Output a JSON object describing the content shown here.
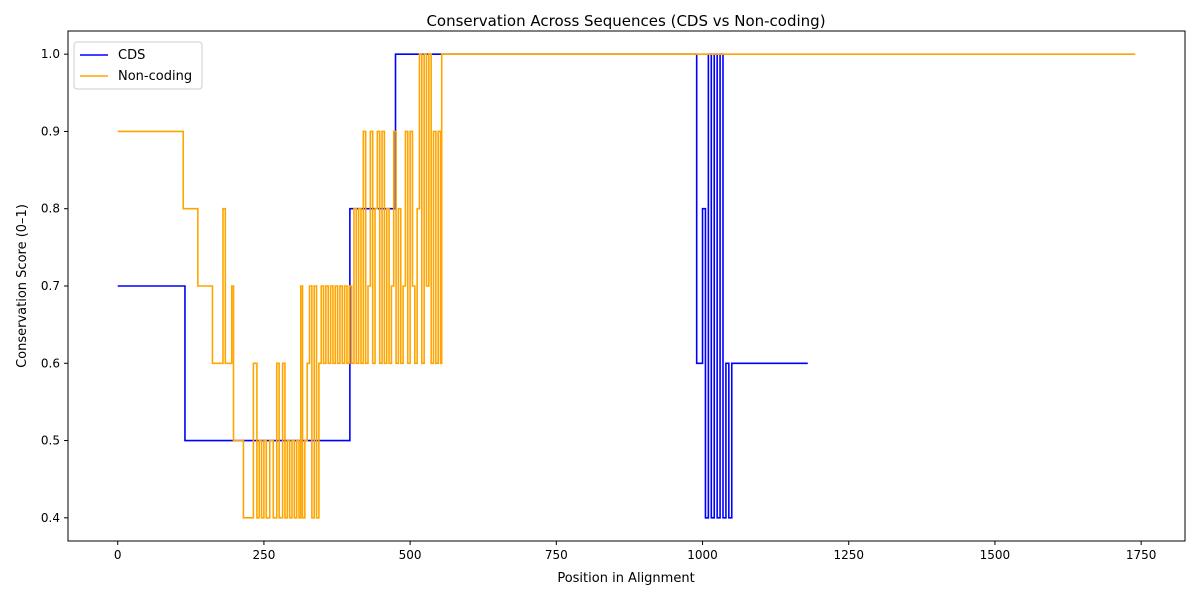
{
  "chart_data": {
    "type": "line",
    "title": "Conservation Across Sequences (CDS vs Non-coding)",
    "xlabel": "Position in Alignment",
    "ylabel": "Conservation Score (0–1)",
    "xlim": [
      -85,
      1825
    ],
    "ylim": [
      0.37,
      1.03
    ],
    "xticks": [
      0,
      250,
      500,
      750,
      1000,
      1250,
      1500,
      1750
    ],
    "yticks": [
      0.4,
      0.5,
      0.6,
      0.7,
      0.8,
      0.9,
      1.0
    ],
    "yticklabels": [
      "0.4",
      "0.5",
      "0.6",
      "0.7",
      "0.8",
      "0.9",
      "1.0"
    ],
    "grid": false,
    "legend_position": "top-left",
    "series": [
      {
        "name": "CDS",
        "color": "#0000ff",
        "points": [
          [
            0,
            0.7
          ],
          [
            115,
            0.7
          ],
          [
            115,
            0.5
          ],
          [
            397,
            0.5
          ],
          [
            397,
            0.8
          ],
          [
            475,
            0.8
          ],
          [
            475,
            1.0
          ],
          [
            990,
            1.0
          ],
          [
            990,
            0.6
          ],
          [
            1000,
            0.6
          ],
          [
            1000,
            0.8
          ],
          [
            1005,
            0.8
          ],
          [
            1005,
            0.4
          ],
          [
            1010,
            0.4
          ],
          [
            1010,
            1.0
          ],
          [
            1015,
            1.0
          ],
          [
            1015,
            0.4
          ],
          [
            1020,
            0.4
          ],
          [
            1020,
            1.0
          ],
          [
            1025,
            1.0
          ],
          [
            1025,
            0.4
          ],
          [
            1030,
            0.4
          ],
          [
            1030,
            1.0
          ],
          [
            1035,
            1.0
          ],
          [
            1035,
            0.4
          ],
          [
            1040,
            0.4
          ],
          [
            1040,
            0.6
          ],
          [
            1045,
            0.6
          ],
          [
            1045,
            0.4
          ],
          [
            1050,
            0.4
          ],
          [
            1050,
            0.6
          ],
          [
            1180,
            0.6
          ]
        ]
      },
      {
        "name": "Non-coding",
        "color": "#ffa500",
        "points": [
          [
            0,
            0.9
          ],
          [
            112,
            0.9
          ],
          [
            112,
            0.8
          ],
          [
            137,
            0.8
          ],
          [
            137,
            0.7
          ],
          [
            162,
            0.7
          ],
          [
            162,
            0.6
          ],
          [
            180,
            0.6
          ],
          [
            180,
            0.8
          ],
          [
            184,
            0.8
          ],
          [
            184,
            0.6
          ],
          [
            195,
            0.6
          ],
          [
            195,
            0.7
          ],
          [
            198,
            0.7
          ],
          [
            198,
            0.5
          ],
          [
            215,
            0.5
          ],
          [
            215,
            0.4
          ],
          [
            232,
            0.4
          ],
          [
            232,
            0.6
          ],
          [
            238,
            0.6
          ],
          [
            238,
            0.4
          ],
          [
            242,
            0.4
          ],
          [
            242,
            0.5
          ],
          [
            246,
            0.5
          ],
          [
            246,
            0.4
          ],
          [
            250,
            0.4
          ],
          [
            250,
            0.5
          ],
          [
            254,
            0.5
          ],
          [
            254,
            0.4
          ],
          [
            260,
            0.4
          ],
          [
            260,
            0.5
          ],
          [
            266,
            0.5
          ],
          [
            266,
            0.4
          ],
          [
            272,
            0.4
          ],
          [
            272,
            0.6
          ],
          [
            276,
            0.6
          ],
          [
            276,
            0.4
          ],
          [
            282,
            0.4
          ],
          [
            282,
            0.6
          ],
          [
            286,
            0.6
          ],
          [
            286,
            0.4
          ],
          [
            290,
            0.4
          ],
          [
            290,
            0.5
          ],
          [
            294,
            0.5
          ],
          [
            294,
            0.4
          ],
          [
            298,
            0.4
          ],
          [
            298,
            0.5
          ],
          [
            302,
            0.5
          ],
          [
            302,
            0.4
          ],
          [
            306,
            0.4
          ],
          [
            306,
            0.5
          ],
          [
            310,
            0.5
          ],
          [
            310,
            0.4
          ],
          [
            313,
            0.4
          ],
          [
            313,
            0.7
          ],
          [
            316,
            0.7
          ],
          [
            316,
            0.4
          ],
          [
            320,
            0.4
          ],
          [
            320,
            0.5
          ],
          [
            324,
            0.5
          ],
          [
            324,
            0.6
          ],
          [
            328,
            0.6
          ],
          [
            328,
            0.7
          ],
          [
            332,
            0.7
          ],
          [
            332,
            0.4
          ],
          [
            336,
            0.4
          ],
          [
            336,
            0.7
          ],
          [
            340,
            0.7
          ],
          [
            340,
            0.4
          ],
          [
            344,
            0.4
          ],
          [
            344,
            0.6
          ],
          [
            348,
            0.6
          ],
          [
            348,
            0.7
          ],
          [
            352,
            0.7
          ],
          [
            352,
            0.6
          ],
          [
            356,
            0.6
          ],
          [
            356,
            0.7
          ],
          [
            360,
            0.7
          ],
          [
            360,
            0.6
          ],
          [
            364,
            0.6
          ],
          [
            364,
            0.7
          ],
          [
            368,
            0.7
          ],
          [
            368,
            0.6
          ],
          [
            372,
            0.6
          ],
          [
            372,
            0.7
          ],
          [
            376,
            0.7
          ],
          [
            376,
            0.6
          ],
          [
            380,
            0.6
          ],
          [
            380,
            0.7
          ],
          [
            384,
            0.7
          ],
          [
            384,
            0.6
          ],
          [
            388,
            0.6
          ],
          [
            388,
            0.7
          ],
          [
            392,
            0.7
          ],
          [
            392,
            0.6
          ],
          [
            396,
            0.6
          ],
          [
            396,
            0.7
          ],
          [
            400,
            0.7
          ],
          [
            400,
            0.6
          ],
          [
            404,
            0.6
          ],
          [
            404,
            0.8
          ],
          [
            408,
            0.8
          ],
          [
            408,
            0.6
          ],
          [
            412,
            0.6
          ],
          [
            412,
            0.8
          ],
          [
            416,
            0.8
          ],
          [
            416,
            0.6
          ],
          [
            420,
            0.6
          ],
          [
            420,
            0.9
          ],
          [
            424,
            0.9
          ],
          [
            424,
            0.6
          ],
          [
            428,
            0.6
          ],
          [
            428,
            0.7
          ],
          [
            432,
            0.7
          ],
          [
            432,
            0.9
          ],
          [
            436,
            0.9
          ],
          [
            436,
            0.6
          ],
          [
            440,
            0.6
          ],
          [
            440,
            0.8
          ],
          [
            444,
            0.8
          ],
          [
            444,
            0.9
          ],
          [
            448,
            0.9
          ],
          [
            448,
            0.6
          ],
          [
            452,
            0.6
          ],
          [
            452,
            0.9
          ],
          [
            456,
            0.9
          ],
          [
            456,
            0.6
          ],
          [
            460,
            0.6
          ],
          [
            460,
            0.8
          ],
          [
            464,
            0.8
          ],
          [
            464,
            0.6
          ],
          [
            468,
            0.6
          ],
          [
            468,
            0.7
          ],
          [
            472,
            0.7
          ],
          [
            472,
            0.9
          ],
          [
            476,
            0.9
          ],
          [
            476,
            0.6
          ],
          [
            480,
            0.6
          ],
          [
            480,
            0.8
          ],
          [
            484,
            0.8
          ],
          [
            484,
            0.6
          ],
          [
            488,
            0.6
          ],
          [
            488,
            0.7
          ],
          [
            492,
            0.7
          ],
          [
            492,
            0.9
          ],
          [
            496,
            0.9
          ],
          [
            496,
            0.6
          ],
          [
            500,
            0.6
          ],
          [
            500,
            0.9
          ],
          [
            504,
            0.9
          ],
          [
            504,
            0.7
          ],
          [
            508,
            0.7
          ],
          [
            508,
            0.6
          ],
          [
            512,
            0.6
          ],
          [
            512,
            0.8
          ],
          [
            516,
            0.8
          ],
          [
            516,
            1.0
          ],
          [
            520,
            1.0
          ],
          [
            520,
            0.6
          ],
          [
            524,
            0.6
          ],
          [
            524,
            1.0
          ],
          [
            528,
            1.0
          ],
          [
            528,
            0.7
          ],
          [
            532,
            0.7
          ],
          [
            532,
            1.0
          ],
          [
            536,
            1.0
          ],
          [
            536,
            0.6
          ],
          [
            540,
            0.6
          ],
          [
            540,
            0.9
          ],
          [
            544,
            0.9
          ],
          [
            544,
            0.6
          ],
          [
            548,
            0.6
          ],
          [
            548,
            0.9
          ],
          [
            552,
            0.9
          ],
          [
            552,
            0.6
          ],
          [
            554,
            0.6
          ],
          [
            554,
            1.0
          ],
          [
            1740,
            1.0
          ]
        ]
      }
    ]
  }
}
